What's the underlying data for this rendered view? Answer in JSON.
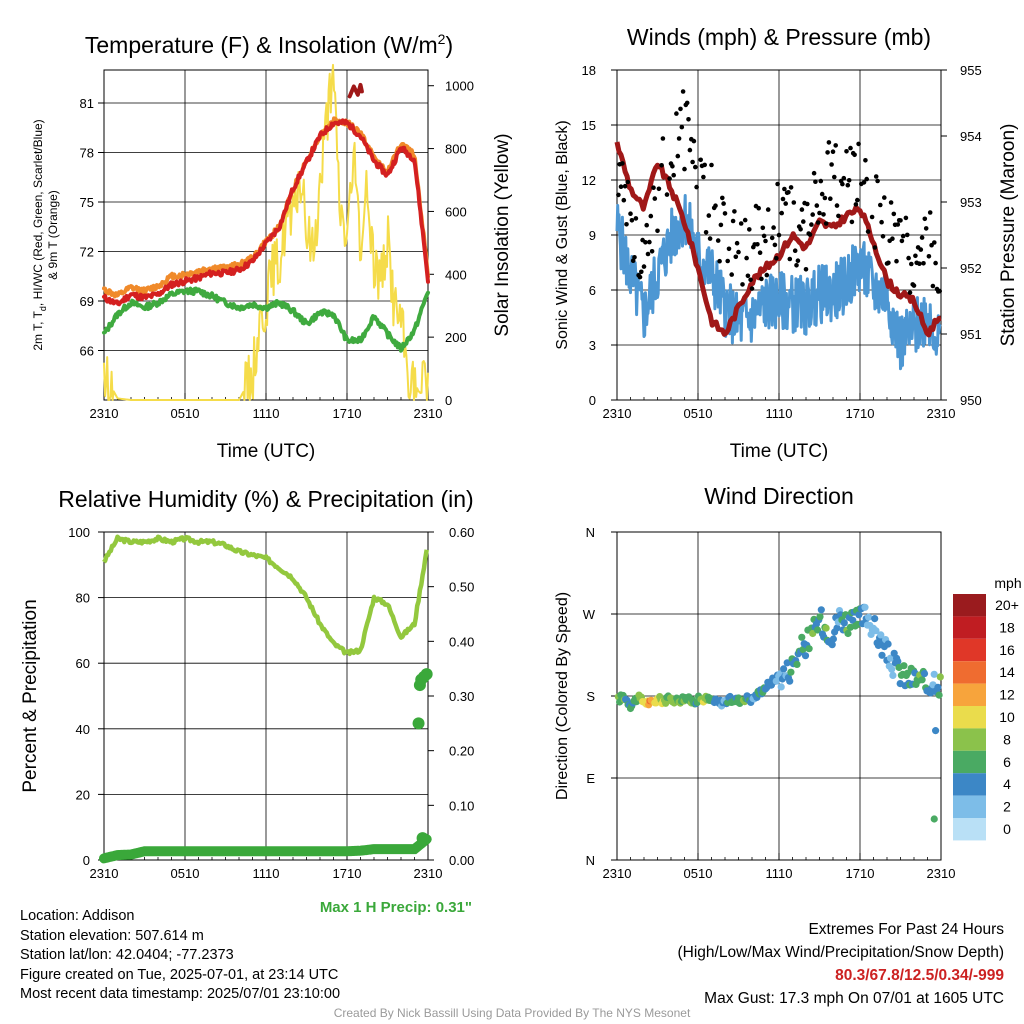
{
  "colors": {
    "red": "#d42020",
    "orange": "#f08a2a",
    "green": "#3faa3f",
    "yellow": "#f5dc4a",
    "blue": "#4d97d3",
    "black": "#000000",
    "maroon": "#a01818",
    "rh": "#93c83e",
    "precip": "#3aa83a",
    "extremes": "#cc2222"
  },
  "chart_data": [
    {
      "type": "line",
      "title": "Temperature (F) & Insolation (W/m",
      "title_sup": "2",
      "title_end": ")",
      "xlabel": "Time (UTC)",
      "ylabel": "2m T, T",
      "ylabel_sub": "d",
      "ylabel_rest": ", HI/WC (Red, Green, Scarlet/Blue)",
      "ylabel2": "& 9m T (Orange)",
      "y2label": "Solar Insolation (Yellow)",
      "xticks": [
        "2310",
        "0510",
        "1110",
        "1710",
        "2310"
      ],
      "yticks": [
        "66",
        "69",
        "72",
        "75",
        "78",
        "81"
      ],
      "ylim": [
        63,
        83
      ],
      "y2ticks": [
        "0",
        "200",
        "400",
        "600",
        "800",
        "1000"
      ],
      "y2lim": [
        0,
        1050
      ],
      "series": [
        {
          "color": "red",
          "x": [
            0,
            1,
            2,
            3,
            4,
            5,
            6,
            7,
            8,
            9,
            10,
            11,
            12,
            13,
            14,
            15,
            16,
            17,
            18,
            19,
            20,
            21,
            22,
            23,
            24
          ],
          "y": [
            69.2,
            68.8,
            69.4,
            69.2,
            69.4,
            70.0,
            70.2,
            70.4,
            70.7,
            70.7,
            70.9,
            71.4,
            72.5,
            73.5,
            75.8,
            77.4,
            79.0,
            79.8,
            79.8,
            79.0,
            77.5,
            76.6,
            78.3,
            77.6,
            70.3
          ]
        },
        {
          "color": "orange",
          "x": [
            0,
            1,
            2,
            3,
            4,
            5,
            6,
            7,
            8,
            9,
            10,
            11,
            12,
            13,
            14,
            15,
            16,
            17,
            18,
            19,
            20,
            21,
            22,
            23,
            24
          ],
          "y": [
            69.7,
            69.3,
            69.8,
            69.6,
            69.9,
            70.5,
            70.6,
            70.8,
            71.0,
            71.0,
            71.2,
            71.6,
            72.6,
            73.5,
            75.8,
            77.5,
            79.0,
            79.9,
            79.8,
            79.2,
            77.7,
            76.8,
            78.5,
            77.9,
            70.6
          ]
        },
        {
          "color": "green",
          "x": [
            0,
            1,
            2,
            3,
            4,
            5,
            6,
            7,
            8,
            9,
            10,
            11,
            12,
            13,
            14,
            15,
            16,
            17,
            18,
            19,
            20,
            21,
            22,
            23,
            24
          ],
          "y": [
            67.0,
            68.2,
            68.9,
            68.6,
            68.9,
            69.4,
            69.6,
            69.6,
            69.3,
            68.9,
            68.6,
            68.8,
            68.6,
            68.9,
            68.4,
            67.6,
            68.3,
            68.2,
            66.6,
            66.6,
            68.1,
            67.0,
            66.1,
            67.2,
            69.6
          ]
        },
        {
          "color": "maroon",
          "x": [
            18.2,
            18.5,
            18.8,
            19.0,
            19.1
          ],
          "y": [
            81.4,
            82.0,
            81.5,
            82.1,
            81.7
          ]
        },
        {
          "color": "yellow",
          "y2": true,
          "x": [
            0,
            0.5,
            1,
            2,
            3,
            4,
            5,
            6,
            7,
            8,
            9,
            10,
            11,
            11.5,
            12,
            12.5,
            13,
            13.5,
            14,
            14.5,
            15,
            15.5,
            16,
            16.5,
            17,
            17.5,
            18,
            18.5,
            19,
            19.5,
            20,
            20.5,
            21,
            21.5,
            22,
            22.5,
            23,
            23.5,
            24
          ],
          "y": [
            60,
            45,
            5,
            0,
            0,
            0,
            0,
            0,
            0,
            0,
            0,
            0,
            80,
            240,
            310,
            420,
            430,
            580,
            560,
            720,
            540,
            470,
            680,
            900,
            1010,
            600,
            520,
            760,
            500,
            660,
            440,
            380,
            520,
            300,
            250,
            90,
            40,
            20,
            90
          ]
        }
      ]
    },
    {
      "type": "line",
      "title": "Winds (mph) & Pressure (mb)",
      "xlabel": "Time (UTC)",
      "ylabel": "Sonic Wind & Gust (Blue, Black)",
      "y2label": "Station Pressure (Maroon)",
      "xticks": [
        "2310",
        "0510",
        "1110",
        "1710",
        "2310"
      ],
      "yticks": [
        "0",
        "3",
        "6",
        "9",
        "12",
        "15",
        "18"
      ],
      "ylim": [
        0,
        18
      ],
      "y2ticks": [
        "950",
        "951",
        "952",
        "953",
        "954",
        "955"
      ],
      "y2lim": [
        950,
        955
      ],
      "series": [
        {
          "color": "blue",
          "name": "wind",
          "x": [
            0,
            1,
            2,
            3,
            4,
            5,
            6,
            7,
            8,
            9,
            10,
            11,
            12,
            13,
            14,
            15,
            16,
            17,
            18,
            19,
            20,
            21,
            22,
            23,
            24
          ],
          "y": [
            9.5,
            6.8,
            4.6,
            6.9,
            8.8,
            10.1,
            7.9,
            6.9,
            5.1,
            4.2,
            4.5,
            5.3,
            5.4,
            5.3,
            5.1,
            5.8,
            5.8,
            6.4,
            7.4,
            6.1,
            5.7,
            3.1,
            3.8,
            4.8,
            3.0
          ]
        },
        {
          "color": "black",
          "name": "gust",
          "x": [
            0,
            1,
            2,
            3,
            4,
            5,
            6,
            7,
            8,
            9,
            10,
            11,
            12,
            13,
            14,
            15,
            16,
            17,
            18,
            19,
            20,
            21,
            22,
            23,
            24
          ],
          "y": [
            12.6,
            9.6,
            6.8,
            11.2,
            14.2,
            14.8,
            12.2,
            10.7,
            9.1,
            8.4,
            8.2,
            8.8,
            9.7,
            9.5,
            9.2,
            11.2,
            12.1,
            11.7,
            12.1,
            10.2,
            9.6,
            7.7,
            8.0,
            9.1,
            7.1
          ]
        },
        {
          "color": "maroon",
          "name": "pressure",
          "y2": true,
          "x": [
            0,
            1,
            2,
            3,
            4,
            5,
            6,
            7,
            8,
            9,
            10,
            11,
            12,
            13,
            14,
            15,
            16,
            17,
            18,
            19,
            20,
            21,
            22,
            23,
            24
          ],
          "y": [
            953.9,
            953.2,
            952.9,
            953.6,
            953.2,
            952.7,
            952.0,
            951.2,
            951.0,
            951.4,
            951.8,
            952.0,
            952.2,
            952.5,
            952.3,
            952.7,
            952.6,
            952.8,
            952.9,
            952.4,
            951.8,
            951.6,
            951.5,
            951.0,
            951.3
          ]
        }
      ]
    },
    {
      "type": "line",
      "title": "Relative Humidity (%) & Precipitation (in)",
      "ylabel": "Percent & Precipitation",
      "xticks": [
        "2310",
        "0510",
        "1110",
        "1710",
        "2310"
      ],
      "yticks": [
        "0",
        "20",
        "40",
        "60",
        "80",
        "100"
      ],
      "ylim": [
        0,
        100
      ],
      "y2ticks": [
        "0.00",
        "0.10",
        "0.20",
        "0.30",
        "0.40",
        "0.50",
        "0.60"
      ],
      "y2lim": [
        0,
        0.6
      ],
      "series": [
        {
          "color": "rh",
          "name": "rh",
          "x": [
            0,
            1,
            2,
            3,
            4,
            5,
            6,
            7,
            8,
            9,
            10,
            11,
            12,
            13,
            14,
            15,
            16,
            17,
            18,
            19,
            20,
            21,
            22,
            23,
            24
          ],
          "y": [
            91,
            98,
            97,
            97,
            98,
            97,
            98,
            97,
            97,
            96,
            94,
            93,
            92,
            89,
            86,
            80,
            72,
            66,
            63,
            64,
            80,
            78,
            68,
            72,
            97
          ]
        },
        {
          "color": "precip",
          "name": "precip",
          "y2": true,
          "x": [
            0,
            1,
            2,
            3,
            4,
            5,
            6,
            7,
            8,
            9,
            10,
            11,
            12,
            13,
            14,
            15,
            16,
            17,
            18,
            19,
            20,
            21,
            22,
            23,
            24
          ],
          "y": [
            0.003,
            0.009,
            0.01,
            0.016,
            0.016,
            0.016,
            0.016,
            0.016,
            0.016,
            0.016,
            0.016,
            0.016,
            0.016,
            0.016,
            0.016,
            0.016,
            0.016,
            0.016,
            0.016,
            0.017,
            0.02,
            0.02,
            0.02,
            0.02,
            0.04
          ]
        }
      ],
      "precip_points": [
        {
          "x": 23.3,
          "y": 0.25
        },
        {
          "x": 23.4,
          "y": 0.32
        },
        {
          "x": 23.5,
          "y": 0.33
        },
        {
          "x": 23.7,
          "y": 0.335
        },
        {
          "x": 23.9,
          "y": 0.34
        }
      ],
      "annotation": "Max 1 H Precip: 0.31\""
    },
    {
      "type": "scatter",
      "title": "Wind Direction",
      "ylabel": "Direction (Colored By Speed)",
      "xticks": [
        "2310",
        "0510",
        "1110",
        "1710",
        "2310"
      ],
      "yticks": [
        "N",
        "E",
        "S",
        "W",
        "N"
      ],
      "ylim": [
        0,
        360
      ],
      "points_x": [
        0,
        0.5,
        1,
        1.5,
        2,
        2.5,
        3,
        3.5,
        4,
        4.5,
        5,
        5.5,
        6,
        6.5,
        7,
        7.5,
        8,
        8.5,
        9,
        9.5,
        10,
        10.5,
        11,
        11.5,
        12,
        12.5,
        13,
        13.5,
        14,
        14.5,
        15,
        15.5,
        16,
        16.5,
        17,
        17.5,
        18,
        18.5,
        19,
        19.5,
        20,
        20.5,
        21,
        21.5,
        22,
        22.5,
        23,
        23.5,
        24
      ],
      "points_y": [
        175,
        180,
        170,
        178,
        174,
        172,
        176,
        175,
        177,
        175,
        178,
        174,
        176,
        177,
        175,
        172,
        174,
        176,
        175,
        178,
        176,
        183,
        190,
        196,
        202,
        205,
        214,
        228,
        238,
        248,
        264,
        255,
        248,
        268,
        262,
        258,
        264,
        270,
        255,
        240,
        226,
        214,
        205,
        198,
        200,
        195,
        190,
        200,
        192
      ],
      "points_speed": [
        8,
        6,
        4,
        7,
        10,
        12,
        9,
        8,
        6,
        8,
        7,
        6,
        6,
        9,
        5,
        4,
        3,
        5,
        6,
        7,
        3,
        4,
        5,
        4,
        3,
        4,
        5,
        6,
        4,
        6,
        5,
        6,
        4,
        3,
        7,
        5,
        6,
        2,
        3,
        4,
        2,
        3,
        5,
        6,
        4,
        7,
        5,
        4,
        6
      ],
      "legend_title": "mph",
      "legend": [
        {
          "label": "20+",
          "color": "#9a1b1e"
        },
        {
          "label": "18",
          "color": "#c01d22"
        },
        {
          "label": "16",
          "color": "#e03728"
        },
        {
          "label": "14",
          "color": "#ef6c30"
        },
        {
          "label": "12",
          "color": "#f7a43c"
        },
        {
          "label": "10",
          "color": "#eadc4c"
        },
        {
          "label": "8",
          "color": "#8bc24b"
        },
        {
          "label": "6",
          "color": "#4aaa63"
        },
        {
          "label": "4",
          "color": "#3c87c6"
        },
        {
          "label": "2",
          "color": "#7dbde8"
        },
        {
          "label": "0",
          "color": "#b9e0f6"
        }
      ]
    }
  ],
  "info_left": [
    "Location: Addison",
    "Station elevation: 507.614 m",
    "Station lat/lon: 42.0404; -77.2373",
    "Figure created on Tue, 2025-07-01, at 23:14 UTC",
    "Most recent data timestamp: 2025/07/01 23:10:00"
  ],
  "extremes_title": "Extremes For Past 24 Hours",
  "extremes_sub": "(High/Low/Max Wind/Precipitation/Snow Depth)",
  "extremes_values": "80.3/67.8/12.5/0.34/-999",
  "max_gust": "Max Gust: 17.3 mph On 07/01 at 1605 UTC",
  "credit": "Created By Nick Bassill Using Data Provided By The NYS Mesonet"
}
